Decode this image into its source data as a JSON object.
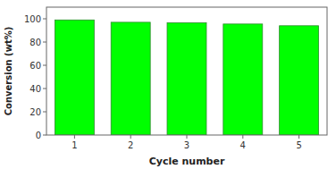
{
  "chart_data": {
    "type": "bar",
    "xlabel": "Cycle number",
    "ylabel": "Conversion (wt%)",
    "x": [
      1,
      2,
      3,
      4,
      5
    ],
    "values": [
      99.0,
      97.0,
      96.5,
      95.5,
      94.0
    ],
    "color": "#00FF00",
    "xlim": [
      0.5,
      5.5
    ],
    "xticks": [
      1,
      2,
      3,
      4,
      5
    ],
    "ylim": [
      0,
      110
    ],
    "yticks": [
      0,
      20,
      40,
      60,
      80,
      100
    ],
    "grid": false
  }
}
